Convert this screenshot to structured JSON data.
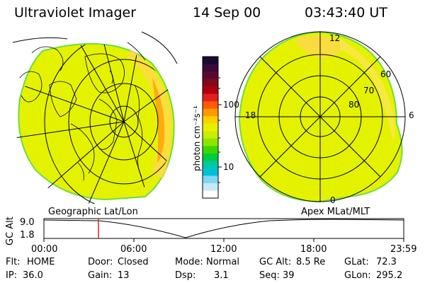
{
  "header": {
    "instrument": "Ultraviolet Imager",
    "date": "14 Sep 00",
    "time": "03:43:40 UT"
  },
  "colorbar": {
    "unit_label": "photon cm⁻²s⁻¹",
    "ticks": [
      "100",
      "10"
    ],
    "colors": [
      "#1a0a2e",
      "#3a0a3a",
      "#5a0a30",
      "#800a1a",
      "#b00010",
      "#e02020",
      "#ff5a00",
      "#ff9a00",
      "#ffd000",
      "#e8f000",
      "#c8ee00",
      "#8ee600",
      "#3ed800",
      "#00cc40",
      "#00c8a0",
      "#00c0d8",
      "#80d8f0",
      "#c8e8f8",
      "#ffffff"
    ]
  },
  "maps": {
    "left_label": "Geographic Lat/Lon",
    "right_label": "Apex MLat/MLT",
    "polar_hour_labels": [
      "12",
      "18",
      "6",
      "0"
    ],
    "polar_lat_labels": [
      "60",
      "70",
      "80"
    ]
  },
  "altitude_plot": {
    "ylabel": "GC Alt",
    "y_ticks": [
      "9.0",
      "1.8"
    ],
    "x_ticks": [
      "00:00",
      "06:00",
      "12:00",
      "18:00",
      "23:59"
    ],
    "marker_time": "03:43:40"
  },
  "status": {
    "flt_label": "Flt:",
    "flt_value": "HOME",
    "ip_label": "IP:",
    "ip_value": "36.0",
    "door_label": "Door:",
    "door_value": "Closed",
    "gain_label": "Gain:",
    "gain_value": "13",
    "mode_label": "Mode:",
    "mode_value": "Normal",
    "dsp_label": "Dsp:",
    "dsp_value": "3.1",
    "gcalt_label": "GC Alt:",
    "gcalt_value": "8.5 Re",
    "seq_label": "Seq:",
    "seq_value": "39",
    "glat_label": "GLat:",
    "glat_value": "72.3",
    "glon_label": "GLon:",
    "glon_value": "295.2"
  }
}
